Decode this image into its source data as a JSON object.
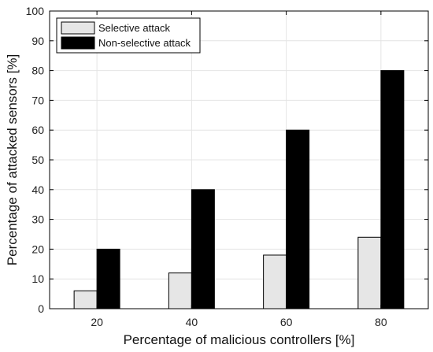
{
  "chart_data": {
    "type": "bar",
    "categories": [
      "20",
      "40",
      "60",
      "80"
    ],
    "series": [
      {
        "name": "Selective attack",
        "values": [
          6,
          12,
          18,
          24
        ],
        "color": "#e6e6e6"
      },
      {
        "name": "Non-selective attack",
        "values": [
          20,
          40,
          60,
          80
        ],
        "color": "#000000"
      }
    ],
    "xlabel": "Percentage of malicious controllers [%]",
    "ylabel": "Percentage of attacked sensors [%]",
    "ylim": [
      0,
      100
    ],
    "yticks": [
      0,
      10,
      20,
      30,
      40,
      50,
      60,
      70,
      80,
      90,
      100
    ],
    "grid": true,
    "legend_position": "top-left"
  }
}
